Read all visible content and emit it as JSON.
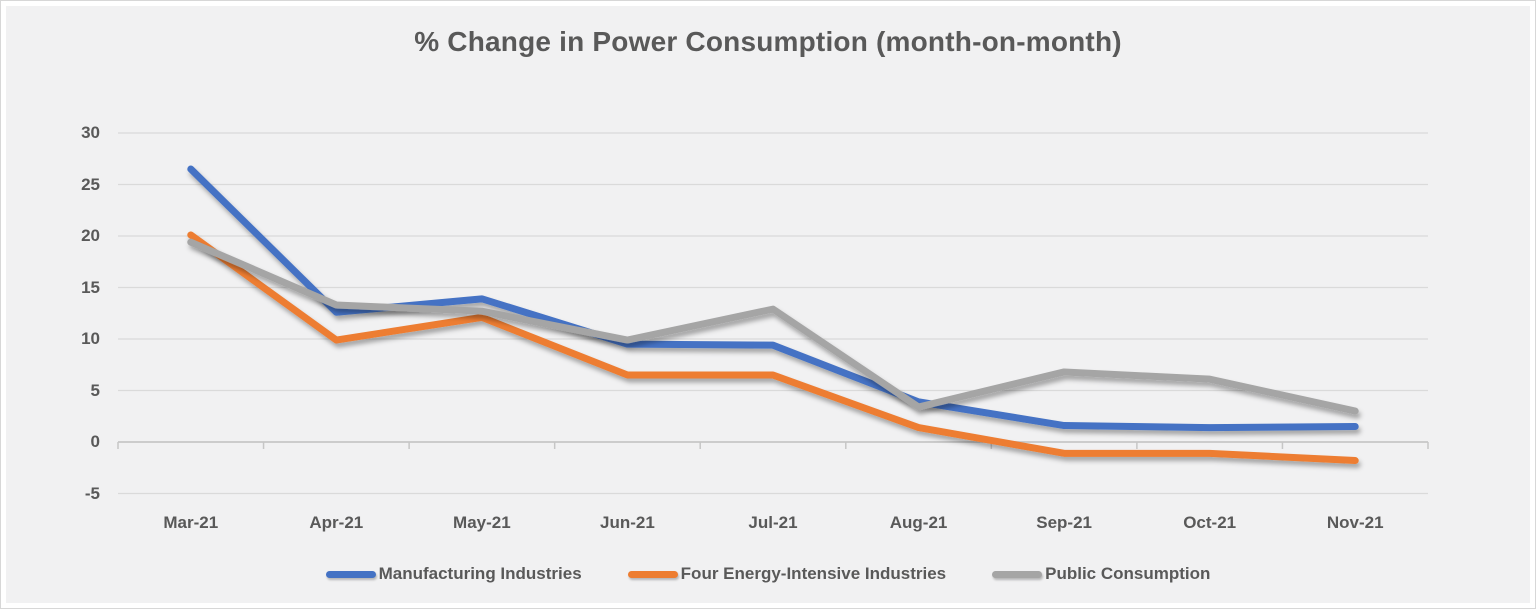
{
  "chart_data": {
    "type": "line",
    "title": "% Change in Power Consumption (month-on-month)",
    "xlabel": "",
    "ylabel": "",
    "categories": [
      "Mar-21",
      "Apr-21",
      "May-21",
      "Jun-21",
      "Jul-21",
      "Aug-21",
      "Sep-21",
      "Oct-21",
      "Nov-21"
    ],
    "series": [
      {
        "name": "Manufacturing Industries",
        "color": "#4472C4",
        "values": [
          26.5,
          12.6,
          13.9,
          9.5,
          9.4,
          3.9,
          1.6,
          1.4,
          1.5
        ]
      },
      {
        "name": "Four Energy-Intensive Industries",
        "color": "#ED7D31",
        "values": [
          20.1,
          9.9,
          12.1,
          6.5,
          6.5,
          1.4,
          -1.1,
          -1.1,
          -1.8
        ]
      },
      {
        "name": "Public Consumption",
        "color": "#A5A5A5",
        "values": [
          19.4,
          13.3,
          12.7,
          9.9,
          12.9,
          3.4,
          6.8,
          6.1,
          3.0
        ]
      }
    ],
    "ylim": [
      -5,
      30
    ],
    "y_ticks": [
      30,
      25,
      20,
      15,
      10,
      5,
      0,
      -5
    ],
    "grid": "horizontal gridlines only",
    "legend_position": "bottom"
  },
  "colors": {
    "background": "#F1F1F2",
    "gridline": "#DADADA",
    "axis": "#C6C6C6",
    "text": "#595959"
  }
}
